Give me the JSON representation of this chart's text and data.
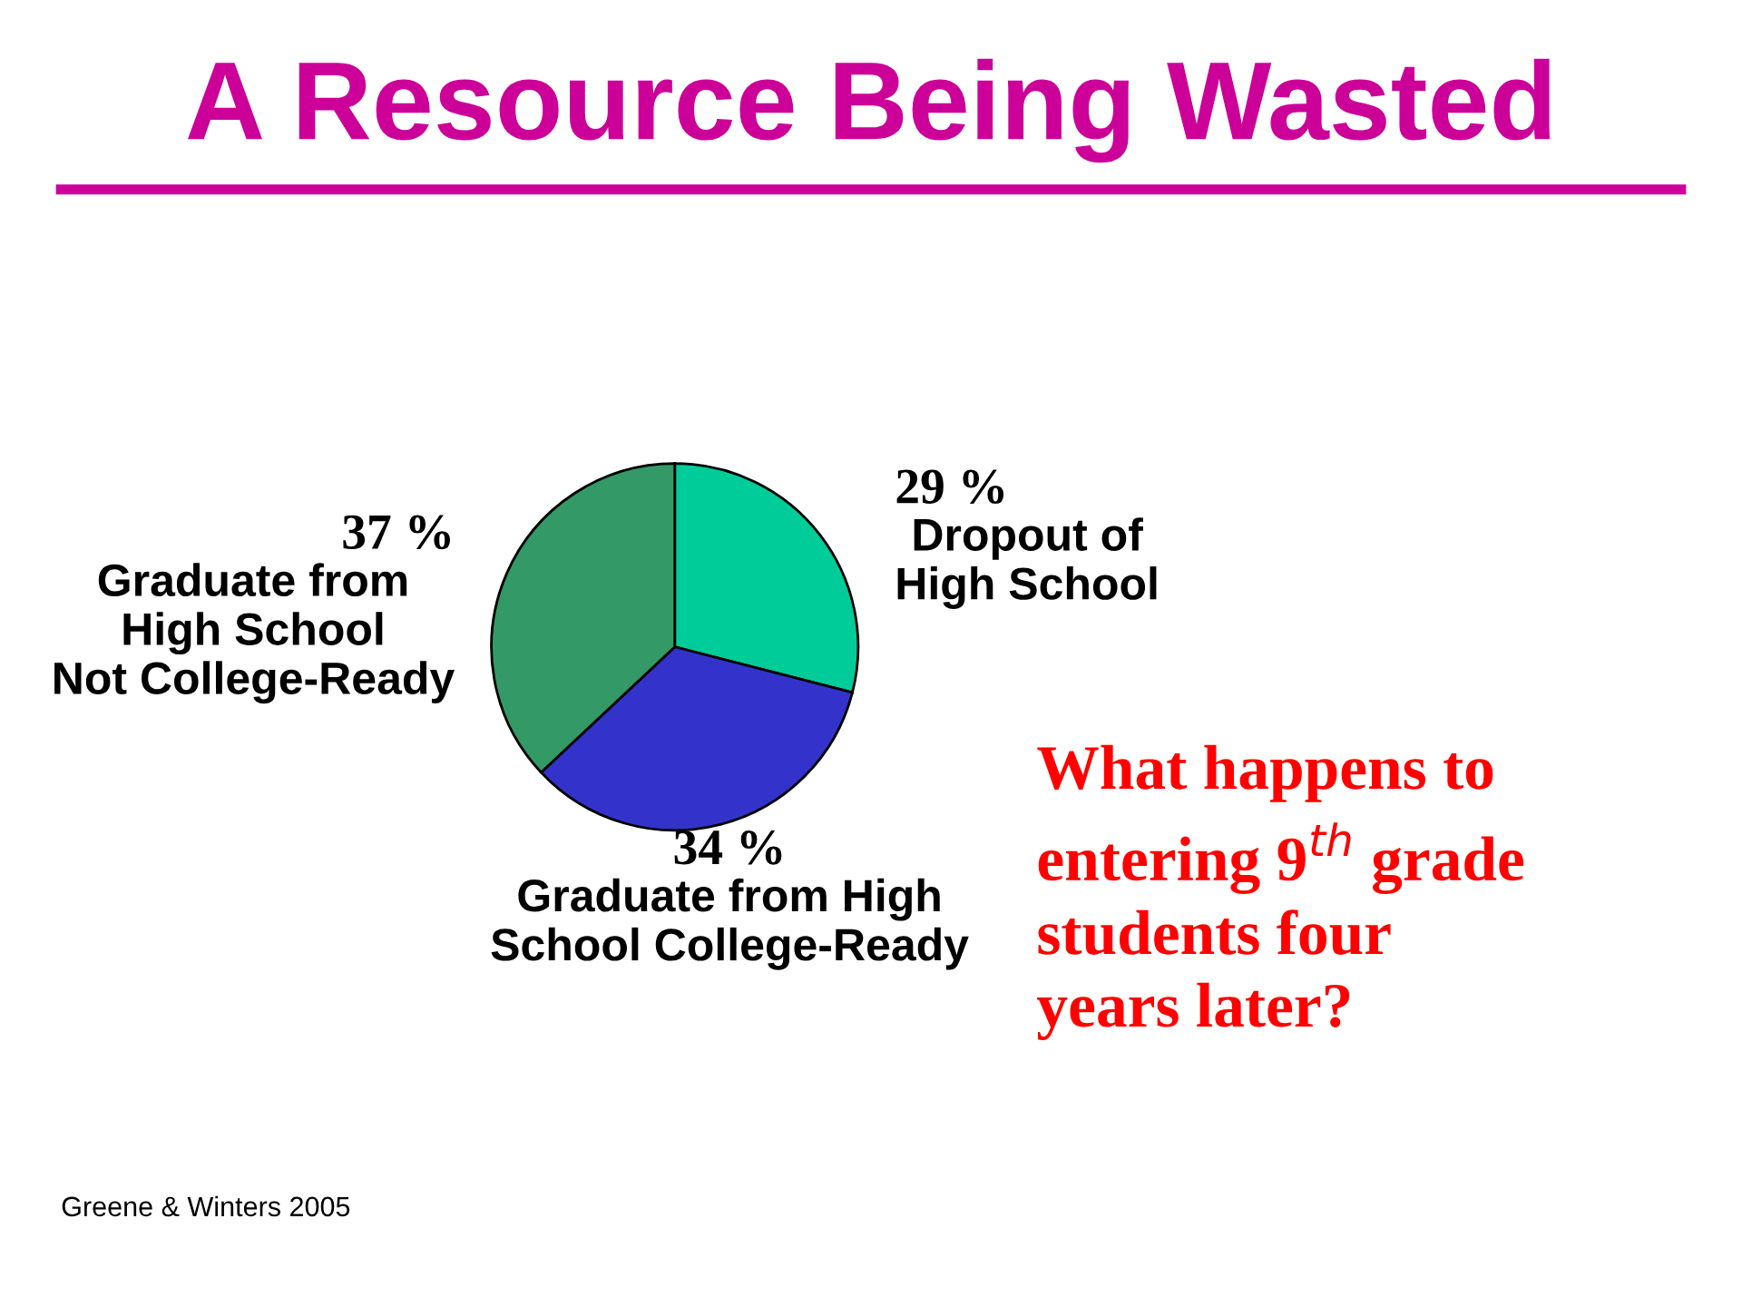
{
  "chart_data": {
    "type": "pie",
    "title": "A Resource Being Wasted",
    "categories": [
      "Dropout of\nHigh School",
      "Graduate from High\nSchool College-Ready",
      "Graduate from\nHigh School\nNot College-Ready"
    ],
    "values": [
      29,
      34,
      37
    ],
    "value_labels": [
      "29 %",
      "34 %",
      "37 %"
    ],
    "colors": [
      "#00cc99",
      "#3333cc",
      "#339966"
    ],
    "annotations": [
      "What happens to\nentering 9$^{th}$ grade\nstudents four\nyears later?",
      "Greene & Winters 2005"
    ]
  }
}
